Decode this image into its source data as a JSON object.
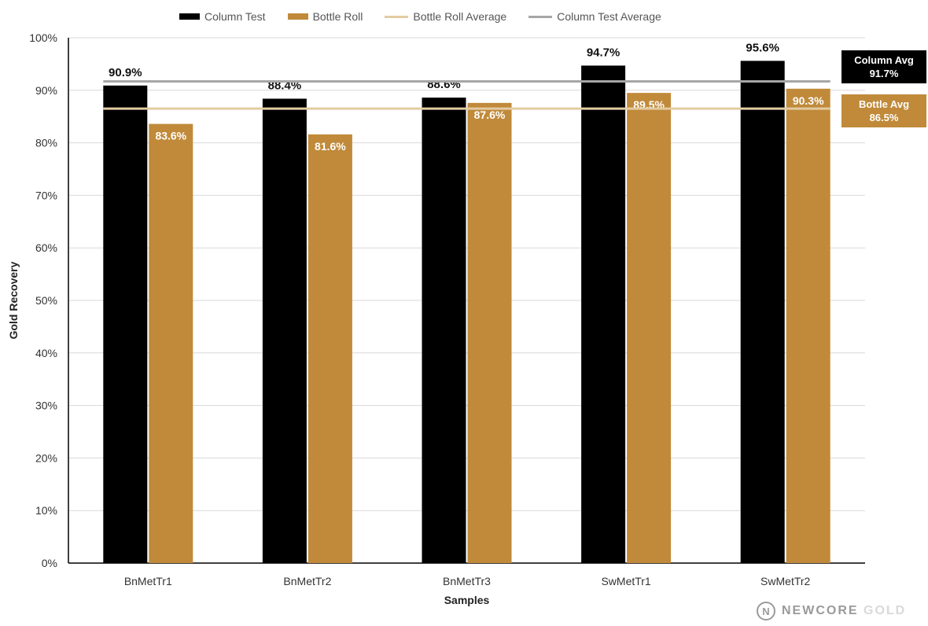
{
  "legend": {
    "column_test": "Column Test",
    "bottle_roll": "Bottle Roll",
    "bottle_roll_average": "Bottle Roll Average",
    "column_test_average": "Column Test Average"
  },
  "colors": {
    "column": "#000000",
    "bottle": "#c08a3a",
    "bottle_avg_line": "#e3cba2",
    "column_avg_line": "#a6a6a6",
    "grid": "#d9d9d9",
    "axis": "#000000"
  },
  "callouts": {
    "column_avg_label": "Column Avg",
    "column_avg_value": "91.7%",
    "bottle_avg_label": "Bottle Avg",
    "bottle_avg_value": "86.5%"
  },
  "logo": {
    "mark": "N",
    "text_main": "NEWCORE",
    "text_light": "GOLD"
  },
  "chart_data": {
    "type": "bar",
    "categories": [
      "BnMetTr1",
      "BnMetTr2",
      "BnMetTr3",
      "SwMetTr1",
      "SwMetTr2"
    ],
    "series": [
      {
        "name": "Column Test",
        "values": [
          90.9,
          88.4,
          88.6,
          94.7,
          95.6
        ],
        "labels": [
          "90.9%",
          "88.4%",
          "88.6%",
          "94.7%",
          "95.6%"
        ]
      },
      {
        "name": "Bottle Roll",
        "values": [
          83.6,
          81.6,
          87.6,
          89.5,
          90.3
        ],
        "labels": [
          "83.6%",
          "81.6%",
          "87.6%",
          "89.5%",
          "90.3%"
        ]
      }
    ],
    "averages": {
      "Column Test Average": 91.7,
      "Bottle Roll Average": 86.5
    },
    "xlabel": "Samples",
    "ylabel": "Gold Recovery",
    "ylim": [
      0,
      100
    ],
    "yticks": [
      "0%",
      "10%",
      "20%",
      "30%",
      "40%",
      "50%",
      "60%",
      "70%",
      "80%",
      "90%",
      "100%"
    ],
    "grid": true,
    "legend_position": "top"
  }
}
